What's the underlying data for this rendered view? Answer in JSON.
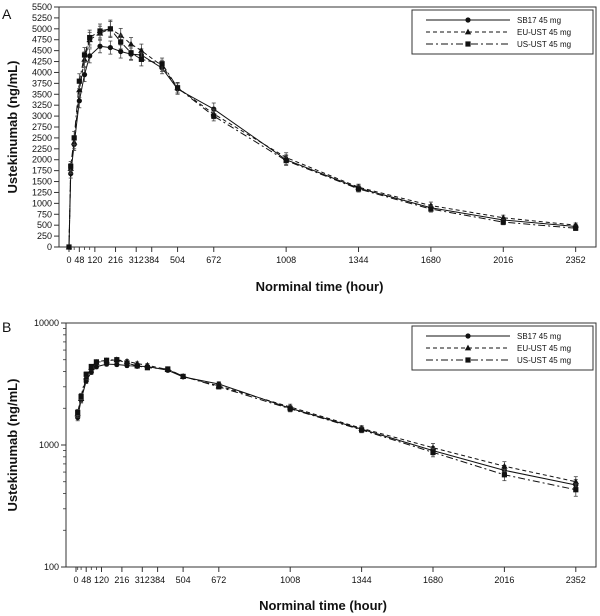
{
  "chart_data": [
    {
      "panel_label": "A",
      "type": "line",
      "scale": "linear",
      "xlabel": "Norminal time (hour)",
      "ylabel": "Ustekinumab (ng/mL)",
      "xlim": [
        0,
        2400
      ],
      "ylim": [
        0,
        5500
      ],
      "x_ticks": [
        0,
        48,
        120,
        216,
        312,
        384,
        504,
        672,
        1008,
        1344,
        1680,
        2016,
        2352
      ],
      "y_ticks": [
        0,
        250,
        500,
        750,
        1000,
        1250,
        1500,
        1750,
        2000,
        2250,
        2500,
        2750,
        3000,
        3250,
        3500,
        3750,
        4000,
        4250,
        4500,
        4750,
        5000,
        5250,
        5500
      ],
      "y_tick_labels": [
        "0",
        "250",
        "500",
        "750",
        "1000",
        "1250",
        "1500",
        "1750",
        "2000",
        "2250",
        "2500",
        "2750",
        "3000",
        "3250",
        "3500",
        "3750",
        "4000",
        "4250",
        "4500",
        "4750",
        "5000",
        "5250",
        "5500"
      ],
      "legend_position": "top-right",
      "x": [
        0,
        8,
        24,
        48,
        72,
        96,
        144,
        192,
        240,
        288,
        336,
        432,
        504,
        672,
        1008,
        1344,
        1680,
        2016,
        2352
      ],
      "series": [
        {
          "name": "SB17 45 mg",
          "marker": "circle",
          "dash": "solid",
          "values": [
            0,
            1680,
            2350,
            3350,
            3950,
            4380,
            4600,
            4570,
            4480,
            4420,
            4400,
            4100,
            3620,
            3160,
            2000,
            1350,
            900,
            620,
            470
          ],
          "errors": [
            0,
            100,
            140,
            160,
            160,
            160,
            150,
            150,
            150,
            140,
            140,
            130,
            120,
            140,
            110,
            70,
            70,
            60,
            50
          ]
        },
        {
          "name": "EU-UST 45 mg",
          "marker": "triangle",
          "dash": "dashed",
          "values": [
            0,
            1800,
            2400,
            3600,
            4300,
            4750,
            4900,
            5000,
            4850,
            4650,
            4500,
            4150,
            3650,
            3050,
            2050,
            1370,
            950,
            670,
            500
          ],
          "errors": [
            0,
            110,
            150,
            170,
            170,
            170,
            160,
            170,
            160,
            150,
            150,
            130,
            120,
            110,
            110,
            70,
            80,
            60,
            50
          ]
        },
        {
          "name": "US-UST 45 mg",
          "marker": "square",
          "dash": "dashdot",
          "values": [
            0,
            1850,
            2500,
            3800,
            4400,
            4800,
            4950,
            5000,
            4700,
            4450,
            4300,
            4200,
            3650,
            3000,
            1980,
            1330,
            870,
            570,
            430
          ],
          "errors": [
            0,
            110,
            150,
            170,
            170,
            170,
            160,
            200,
            160,
            150,
            150,
            130,
            120,
            110,
            110,
            70,
            70,
            60,
            50
          ]
        }
      ]
    },
    {
      "panel_label": "B",
      "type": "line",
      "scale": "log",
      "xlabel": "Norminal time (hour)",
      "ylabel": "Ustekinumab (ng/mL)",
      "xlim": [
        0,
        2400
      ],
      "ylim": [
        100,
        10000
      ],
      "x_ticks": [
        0,
        48,
        120,
        216,
        312,
        384,
        504,
        672,
        1008,
        1344,
        1680,
        2016,
        2352
      ],
      "y_ticks": [
        100,
        1000,
        10000
      ],
      "y_tick_labels": [
        "100",
        "1000",
        "10000"
      ],
      "legend_position": "top-right",
      "x": [
        8,
        24,
        48,
        72,
        96,
        144,
        192,
        240,
        288,
        336,
        432,
        504,
        672,
        1008,
        1344,
        1680,
        2016,
        2352
      ],
      "series": [
        {
          "name": "SB17 45 mg",
          "marker": "circle",
          "dash": "solid",
          "values": [
            1680,
            2350,
            3350,
            3950,
            4380,
            4600,
            4570,
            4480,
            4420,
            4400,
            4100,
            3620,
            3160,
            2000,
            1350,
            900,
            620,
            470
          ],
          "errors": [
            100,
            140,
            160,
            160,
            160,
            150,
            150,
            150,
            140,
            140,
            130,
            120,
            140,
            110,
            70,
            70,
            60,
            50
          ]
        },
        {
          "name": "EU-UST 45 mg",
          "marker": "triangle",
          "dash": "dashed",
          "values": [
            1800,
            2400,
            3600,
            4300,
            4750,
            4900,
            5000,
            4850,
            4650,
            4500,
            4150,
            3650,
            3050,
            2050,
            1370,
            950,
            670,
            500
          ],
          "errors": [
            110,
            150,
            170,
            170,
            170,
            160,
            170,
            160,
            150,
            150,
            130,
            120,
            110,
            110,
            70,
            80,
            60,
            50
          ]
        },
        {
          "name": "US-UST 45 mg",
          "marker": "square",
          "dash": "dashdot",
          "values": [
            1850,
            2500,
            3800,
            4400,
            4800,
            4950,
            5000,
            4700,
            4450,
            4300,
            4200,
            3650,
            3000,
            1980,
            1330,
            870,
            570,
            430
          ],
          "errors": [
            110,
            150,
            170,
            170,
            170,
            160,
            200,
            160,
            150,
            150,
            130,
            120,
            110,
            110,
            70,
            70,
            60,
            50
          ]
        }
      ]
    }
  ]
}
